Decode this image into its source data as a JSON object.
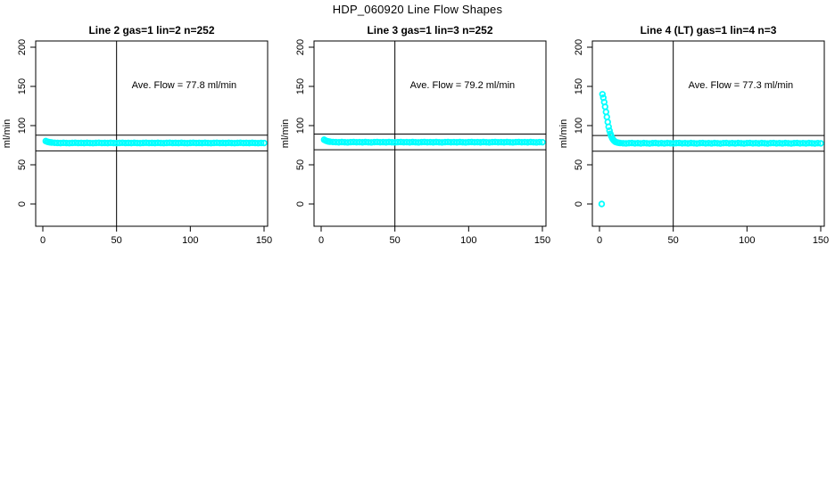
{
  "page_title": "HDP_060920  Line Flow Shapes",
  "colors": {
    "marker": "#00FFFF",
    "axis": "#000000",
    "background": "#FFFFFF"
  },
  "chart_data": [
    {
      "type": "scatter",
      "title": "Line 2 gas=1 lin=2 n=252",
      "annotation": "Ave. Flow =  77.8  ml/min",
      "ave_flow": 77.8,
      "xlabel": "",
      "ylabel": "ml/min",
      "xlim": [
        0,
        150
      ],
      "ylim": [
        0,
        200
      ],
      "x_ticks": [
        0,
        50,
        100,
        150
      ],
      "y_ticks": [
        0,
        50,
        100,
        150,
        200
      ],
      "vline_x": 50,
      "hlines": [
        87.8,
        67.8
      ],
      "grid": false,
      "legend": null,
      "points": [
        [
          2,
          80.3
        ],
        [
          3,
          79.4
        ],
        [
          4,
          79.0
        ],
        [
          5,
          78.6
        ],
        [
          6,
          78.4
        ],
        [
          8,
          78.1
        ],
        [
          10,
          77.9
        ],
        [
          12,
          77.7
        ],
        [
          14,
          78.0
        ],
        [
          16,
          77.8
        ],
        [
          18,
          77.6
        ],
        [
          20,
          77.9
        ],
        [
          22,
          78.1
        ],
        [
          24,
          77.8
        ],
        [
          26,
          77.9
        ],
        [
          28,
          77.7
        ],
        [
          30,
          78.0
        ],
        [
          32,
          77.8
        ],
        [
          34,
          77.6
        ],
        [
          36,
          77.9
        ],
        [
          38,
          78.1
        ],
        [
          40,
          77.8
        ],
        [
          42,
          77.9
        ],
        [
          44,
          77.7
        ],
        [
          46,
          78.0
        ],
        [
          48,
          77.8
        ],
        [
          50,
          77.6
        ],
        [
          52,
          77.9
        ],
        [
          54,
          78.1
        ],
        [
          56,
          77.8
        ],
        [
          58,
          77.9
        ],
        [
          60,
          77.7
        ],
        [
          62,
          78.0
        ],
        [
          64,
          77.8
        ],
        [
          66,
          77.6
        ],
        [
          68,
          77.9
        ],
        [
          70,
          78.1
        ],
        [
          72,
          77.8
        ],
        [
          74,
          77.9
        ],
        [
          76,
          77.7
        ],
        [
          78,
          78.0
        ],
        [
          80,
          77.8
        ],
        [
          82,
          77.6
        ],
        [
          84,
          77.9
        ],
        [
          86,
          78.1
        ],
        [
          88,
          77.8
        ],
        [
          90,
          77.9
        ],
        [
          92,
          77.7
        ],
        [
          94,
          78.0
        ],
        [
          96,
          77.8
        ],
        [
          98,
          77.6
        ],
        [
          100,
          77.9
        ],
        [
          102,
          78.1
        ],
        [
          104,
          77.8
        ],
        [
          106,
          77.9
        ],
        [
          108,
          77.7
        ],
        [
          110,
          78.0
        ],
        [
          112,
          77.8
        ],
        [
          114,
          77.6
        ],
        [
          116,
          77.9
        ],
        [
          118,
          78.1
        ],
        [
          120,
          77.8
        ],
        [
          122,
          77.9
        ],
        [
          124,
          77.7
        ],
        [
          126,
          78.0
        ],
        [
          128,
          77.8
        ],
        [
          130,
          77.6
        ],
        [
          132,
          77.9
        ],
        [
          134,
          78.1
        ],
        [
          136,
          77.8
        ],
        [
          138,
          77.9
        ],
        [
          140,
          77.7
        ],
        [
          142,
          78.0
        ],
        [
          144,
          77.8
        ],
        [
          146,
          77.6
        ],
        [
          148,
          77.9
        ],
        [
          150,
          77.8
        ]
      ]
    },
    {
      "type": "scatter",
      "title": "Line 3 gas=1 lin=3 n=252",
      "annotation": "Ave. Flow =  79.2  ml/min",
      "ave_flow": 79.2,
      "xlabel": "",
      "ylabel": "ml/min",
      "xlim": [
        0,
        150
      ],
      "ylim": [
        0,
        200
      ],
      "x_ticks": [
        0,
        50,
        100,
        150
      ],
      "y_ticks": [
        0,
        50,
        100,
        150,
        200
      ],
      "vline_x": 50,
      "hlines": [
        89.2,
        69.2
      ],
      "grid": false,
      "legend": null,
      "points": [
        [
          2,
          82.0
        ],
        [
          3,
          80.9
        ],
        [
          4,
          80.2
        ],
        [
          5,
          79.7
        ],
        [
          6,
          79.4
        ],
        [
          8,
          79.1
        ],
        [
          10,
          78.9
        ],
        [
          12,
          78.7
        ],
        [
          14,
          79.0
        ],
        [
          16,
          78.8
        ],
        [
          18,
          78.6
        ],
        [
          20,
          78.9
        ],
        [
          22,
          79.1
        ],
        [
          24,
          78.8
        ],
        [
          26,
          78.9
        ],
        [
          28,
          78.7
        ],
        [
          30,
          79.0
        ],
        [
          32,
          78.8
        ],
        [
          34,
          78.6
        ],
        [
          36,
          78.9
        ],
        [
          38,
          79.1
        ],
        [
          40,
          78.8
        ],
        [
          42,
          78.9
        ],
        [
          44,
          78.7
        ],
        [
          46,
          79.0
        ],
        [
          48,
          78.8
        ],
        [
          50,
          78.6
        ],
        [
          52,
          78.9
        ],
        [
          54,
          79.1
        ],
        [
          56,
          78.8
        ],
        [
          58,
          78.9
        ],
        [
          60,
          78.7
        ],
        [
          62,
          79.0
        ],
        [
          64,
          78.8
        ],
        [
          66,
          78.6
        ],
        [
          68,
          78.9
        ],
        [
          70,
          79.1
        ],
        [
          72,
          78.8
        ],
        [
          74,
          78.9
        ],
        [
          76,
          78.7
        ],
        [
          78,
          79.0
        ],
        [
          80,
          78.8
        ],
        [
          82,
          78.6
        ],
        [
          84,
          78.9
        ],
        [
          86,
          79.1
        ],
        [
          88,
          78.8
        ],
        [
          90,
          78.9
        ],
        [
          92,
          78.7
        ],
        [
          94,
          79.0
        ],
        [
          96,
          78.8
        ],
        [
          98,
          78.6
        ],
        [
          100,
          78.9
        ],
        [
          102,
          79.1
        ],
        [
          104,
          78.8
        ],
        [
          106,
          78.9
        ],
        [
          108,
          78.7
        ],
        [
          110,
          79.0
        ],
        [
          112,
          78.8
        ],
        [
          114,
          78.6
        ],
        [
          116,
          78.9
        ],
        [
          118,
          79.1
        ],
        [
          120,
          78.8
        ],
        [
          122,
          78.9
        ],
        [
          124,
          78.7
        ],
        [
          126,
          79.0
        ],
        [
          128,
          78.8
        ],
        [
          130,
          78.6
        ],
        [
          132,
          78.9
        ],
        [
          134,
          79.1
        ],
        [
          136,
          78.8
        ],
        [
          138,
          78.9
        ],
        [
          140,
          78.7
        ],
        [
          142,
          79.0
        ],
        [
          144,
          78.8
        ],
        [
          146,
          78.6
        ],
        [
          148,
          78.9
        ],
        [
          150,
          78.8
        ]
      ]
    },
    {
      "type": "scatter",
      "title": "Line 4 (LT) gas=1 lin=4 n=3",
      "annotation": "Ave. Flow =  77.3  ml/min",
      "ave_flow": 77.3,
      "xlabel": "",
      "ylabel": "ml/min",
      "xlim": [
        0,
        150
      ],
      "ylim": [
        0,
        200
      ],
      "x_ticks": [
        0,
        50,
        100,
        150
      ],
      "y_ticks": [
        0,
        50,
        100,
        150,
        200
      ],
      "vline_x": 50,
      "hlines": [
        87.3,
        67.3
      ],
      "grid": false,
      "legend": null,
      "points": [
        [
          1.5,
          0
        ],
        [
          2,
          140
        ],
        [
          2.6,
          135.5
        ],
        [
          3.2,
          130
        ],
        [
          3.8,
          124
        ],
        [
          4.4,
          117.5
        ],
        [
          5,
          111
        ],
        [
          5.6,
          104.5
        ],
        [
          6.2,
          98.5
        ],
        [
          6.8,
          93.5
        ],
        [
          7.4,
          89.5
        ],
        [
          8,
          86.5
        ],
        [
          8.6,
          84
        ],
        [
          9.2,
          82.2
        ],
        [
          9.8,
          80.8
        ],
        [
          10.4,
          79.8
        ],
        [
          11,
          79.1
        ],
        [
          12,
          78.5
        ],
        [
          13,
          78.1
        ],
        [
          14,
          77.8
        ],
        [
          16,
          77.5
        ],
        [
          18,
          77.3
        ],
        [
          20,
          77.6
        ],
        [
          22,
          77.8
        ],
        [
          24,
          77.4
        ],
        [
          26,
          77.6
        ],
        [
          28,
          77.3
        ],
        [
          30,
          77.7
        ],
        [
          32,
          77.5
        ],
        [
          34,
          77.2
        ],
        [
          36,
          77.6
        ],
        [
          38,
          77.8
        ],
        [
          40,
          77.4
        ],
        [
          42,
          77.6
        ],
        [
          44,
          77.3
        ],
        [
          46,
          77.7
        ],
        [
          48,
          77.5
        ],
        [
          50,
          77.3
        ],
        [
          52,
          77.6
        ],
        [
          54,
          77.8
        ],
        [
          56,
          77.4
        ],
        [
          58,
          77.6
        ],
        [
          60,
          77.3
        ],
        [
          62,
          77.7
        ],
        [
          64,
          77.5
        ],
        [
          66,
          77.2
        ],
        [
          68,
          77.6
        ],
        [
          70,
          77.8
        ],
        [
          72,
          77.4
        ],
        [
          74,
          77.6
        ],
        [
          76,
          77.3
        ],
        [
          78,
          77.7
        ],
        [
          80,
          77.5
        ],
        [
          82,
          77.2
        ],
        [
          84,
          77.6
        ],
        [
          86,
          77.8
        ],
        [
          88,
          77.4
        ],
        [
          90,
          77.6
        ],
        [
          92,
          77.3
        ],
        [
          94,
          77.7
        ],
        [
          96,
          77.5
        ],
        [
          98,
          77.2
        ],
        [
          100,
          77.6
        ],
        [
          102,
          77.8
        ],
        [
          104,
          77.4
        ],
        [
          106,
          77.6
        ],
        [
          108,
          77.3
        ],
        [
          110,
          77.7
        ],
        [
          112,
          77.5
        ],
        [
          114,
          77.2
        ],
        [
          116,
          77.6
        ],
        [
          118,
          77.8
        ],
        [
          120,
          77.4
        ],
        [
          122,
          77.6
        ],
        [
          124,
          77.3
        ],
        [
          126,
          77.7
        ],
        [
          128,
          77.5
        ],
        [
          130,
          77.2
        ],
        [
          132,
          77.6
        ],
        [
          134,
          77.8
        ],
        [
          136,
          77.4
        ],
        [
          138,
          77.6
        ],
        [
          140,
          77.3
        ],
        [
          142,
          77.7
        ],
        [
          144,
          77.5
        ],
        [
          146,
          77.2
        ],
        [
          148,
          77.6
        ],
        [
          150,
          77.4
        ]
      ]
    }
  ]
}
